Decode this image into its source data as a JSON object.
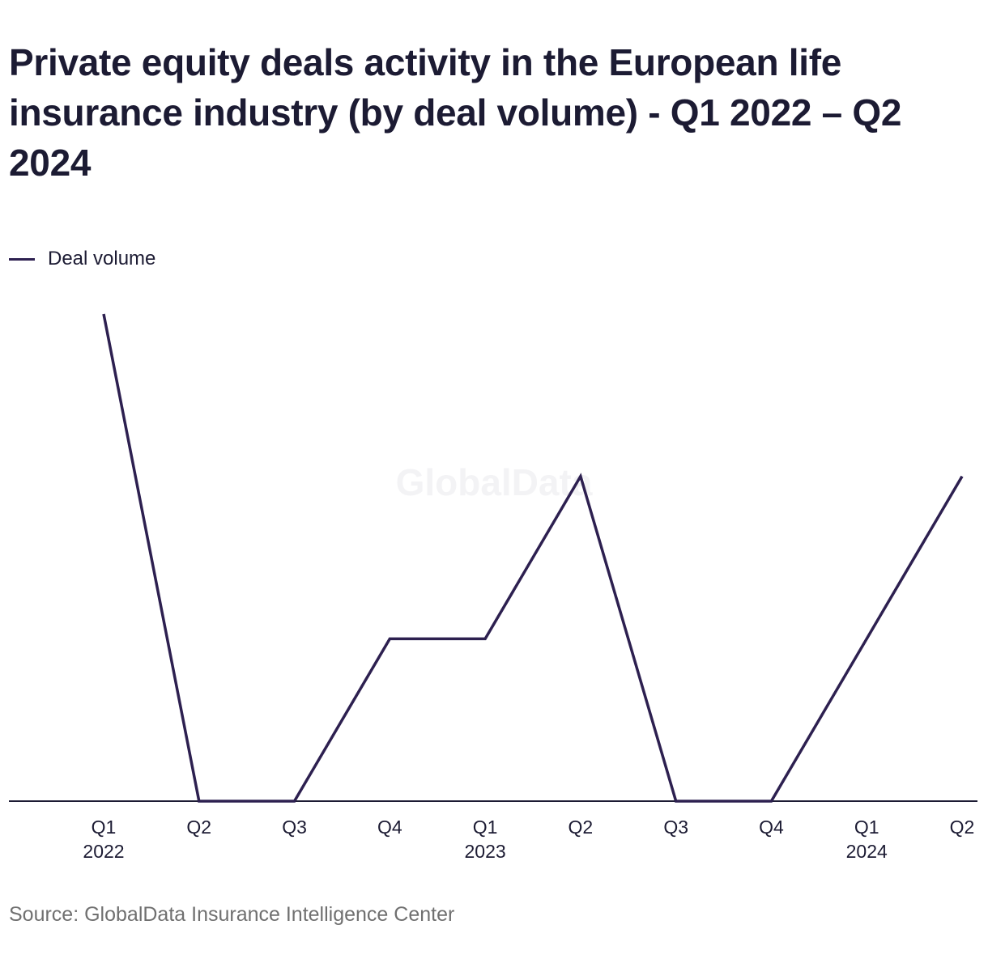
{
  "title": "Private equity deals activity in the European life insurance industry (by deal volume) - Q1 2022 – Q2 2024",
  "source": "Source: GlobalData Insurance Intelligence Center",
  "watermark": "GlobalData",
  "colors": {
    "line": "#2d2050",
    "axis": "#1c1b33",
    "text": "#1c1b33",
    "source": "#707070"
  },
  "chart_data": {
    "type": "line",
    "title": "Private equity deals activity in the European life insurance industry (by deal volume) - Q1 2022 – Q2 2024",
    "xlabel": "",
    "ylabel": "",
    "grid": false,
    "legend": "top-left",
    "categories": [
      "Q1 2022",
      "Q2 2022",
      "Q3 2022",
      "Q4 2022",
      "Q1 2023",
      "Q2 2023",
      "Q3 2023",
      "Q4 2023",
      "Q1 2024",
      "Q2 2024"
    ],
    "tick_labels": [
      [
        "Q1",
        "2022"
      ],
      [
        "Q2"
      ],
      [
        "Q3"
      ],
      [
        "Q4"
      ],
      [
        "Q1",
        "2023"
      ],
      [
        "Q2"
      ],
      [
        "Q3"
      ],
      [
        "Q4"
      ],
      [
        "Q1",
        "2024"
      ],
      [
        "Q2"
      ]
    ],
    "ylim": [
      0,
      3
    ],
    "series": [
      {
        "name": "Deal volume",
        "values": [
          3,
          0,
          0,
          1,
          1,
          2,
          0,
          0,
          1,
          2
        ]
      }
    ]
  }
}
